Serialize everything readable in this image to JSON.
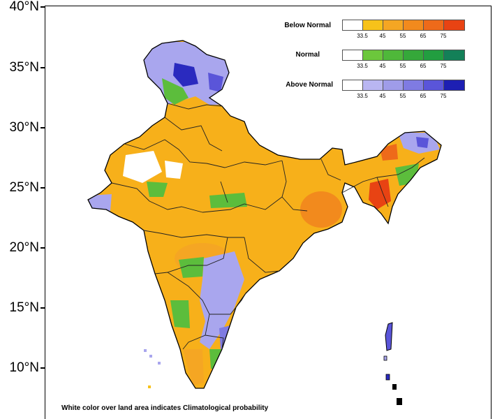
{
  "lat_labels": [
    "40°N",
    "35°N",
    "30°N",
    "25°N",
    "20°N",
    "15°N",
    "10°N"
  ],
  "legend": [
    {
      "title": "Below Normal",
      "ticks": [
        "33.5",
        "45",
        "55",
        "65",
        "75"
      ],
      "colors": [
        "#ffffff",
        "#f7c21a",
        "#f5a623",
        "#f28a1d",
        "#ee6a1a",
        "#e84313"
      ]
    },
    {
      "title": "Normal",
      "ticks": [
        "33.5",
        "45",
        "55",
        "65",
        "75"
      ],
      "colors": [
        "#ffffff",
        "#6cc73c",
        "#4fb83a",
        "#35a83a",
        "#229e40",
        "#138058"
      ]
    },
    {
      "title": "Above Normal",
      "ticks": [
        "33.5",
        "45",
        "55",
        "65",
        "75"
      ],
      "colors": [
        "#ffffff",
        "#b9b6f2",
        "#9f9ce9",
        "#7f7be2",
        "#5a55d9",
        "#1d1fb3"
      ]
    }
  ],
  "colors": {
    "below_normal_main": "#f7b01a",
    "normal_main": "#5cbd3c",
    "above_normal_main": "#a9a6ee",
    "above_normal_dark": "#2a2abf"
  },
  "note": "White color over land area indicates Climatological probability"
}
